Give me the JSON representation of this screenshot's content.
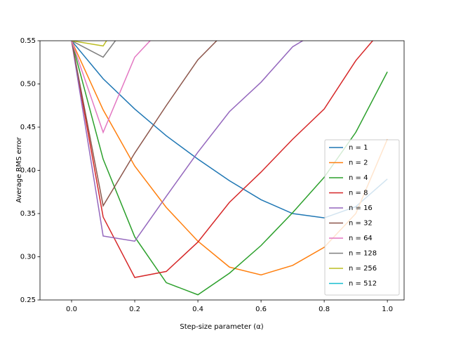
{
  "chart_data": {
    "type": "line",
    "x_label": "Step-size parameter (α)",
    "y_label": "Average RMS error",
    "x": [
      0.0,
      0.1,
      0.2,
      0.3,
      0.4,
      0.5,
      0.6,
      0.7,
      0.8,
      0.9,
      1.0
    ],
    "xlim": [
      -0.1,
      1.053
    ],
    "ylim": [
      0.25,
      0.55
    ],
    "xticks": [
      {
        "value": 0,
        "label": "0.0"
      },
      0.2,
      0.4,
      0.6,
      0.8,
      {
        "value": 1,
        "label": "1.0"
      }
    ],
    "yticks": [
      0.25,
      {
        "value": 0.3,
        "label": "0.30"
      },
      0.35,
      {
        "value": 0.4,
        "label": "0.40"
      },
      0.45,
      {
        "value": 0.5,
        "label": "0.50"
      },
      0.55
    ],
    "legend": "lower right",
    "series": [
      {
        "name": "n = 1",
        "color": "#1f77b4",
        "values": [
          0.55,
          0.506,
          0.471,
          0.44,
          0.413,
          0.388,
          0.366,
          0.35,
          0.345,
          0.358,
          0.39
        ]
      },
      {
        "name": "n = 2",
        "color": "#ff7f0e",
        "values": [
          0.55,
          0.47,
          0.405,
          0.357,
          0.318,
          0.288,
          0.279,
          0.29,
          0.311,
          0.35,
          0.436
        ]
      },
      {
        "name": "n = 4",
        "color": "#2ca02c",
        "values": [
          0.55,
          0.413,
          0.323,
          0.27,
          0.256,
          0.281,
          0.313,
          0.351,
          0.392,
          0.444,
          0.514
        ]
      },
      {
        "name": "n = 8",
        "color": "#d62728",
        "values": [
          0.55,
          0.346,
          0.276,
          0.283,
          0.317,
          0.363,
          0.398,
          0.436,
          0.471,
          0.527,
          0.57
        ]
      },
      {
        "name": "n = 16",
        "color": "#9467bd",
        "values": [
          0.55,
          0.324,
          0.318,
          0.37,
          0.421,
          0.468,
          0.502,
          0.543,
          0.565,
          null,
          null
        ]
      },
      {
        "name": "n = 32",
        "color": "#8c564b",
        "values": [
          0.55,
          0.359,
          0.42,
          0.475,
          0.528,
          0.565,
          null,
          null,
          null,
          null,
          null
        ]
      },
      {
        "name": "n = 64",
        "color": "#e377c2",
        "values": [
          0.55,
          0.444,
          0.531,
          0.57,
          null,
          null,
          null,
          null,
          null,
          null,
          null
        ]
      },
      {
        "name": "n = 128",
        "color": "#7f7f7f",
        "values": [
          0.55,
          0.531,
          0.58,
          null,
          null,
          null,
          null,
          null,
          null,
          null,
          null
        ]
      },
      {
        "name": "n = 256",
        "color": "#bcbd22",
        "values": [
          0.55,
          0.544,
          0.6,
          null,
          null,
          null,
          null,
          null,
          null,
          null,
          null
        ]
      },
      {
        "name": "n = 512",
        "color": "#17becf",
        "values": [
          0.55,
          0.6,
          null,
          null,
          null,
          null,
          null,
          null,
          null,
          null,
          null
        ]
      }
    ]
  }
}
